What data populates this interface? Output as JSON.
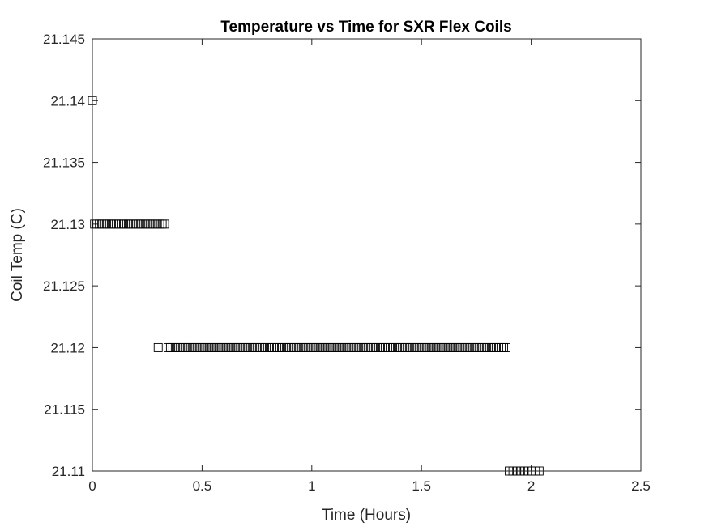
{
  "chart_data": {
    "type": "scatter",
    "title": "Temperature vs Time for SXR Flex Coils",
    "xlabel": "Time (Hours)",
    "ylabel": "Coil Temp (C)",
    "xlim": [
      0,
      2.5
    ],
    "ylim": [
      21.11,
      21.145
    ],
    "xticks": [
      "0",
      "0.5",
      "1",
      "1.5",
      "2",
      "2.5"
    ],
    "yticks": [
      "21.11",
      "21.115",
      "21.12",
      "21.125",
      "21.13",
      "21.135",
      "21.14",
      "21.145"
    ],
    "grid": false,
    "marker": "square",
    "marker_color": "#000000",
    "points_by_level": [
      {
        "y": 21.14,
        "x": [
          0.0
        ]
      },
      {
        "y": 21.13,
        "x": [
          0.01,
          0.021,
          0.032,
          0.043,
          0.054,
          0.065,
          0.076,
          0.087,
          0.098,
          0.109,
          0.12,
          0.131,
          0.142,
          0.153,
          0.164,
          0.175,
          0.186,
          0.197,
          0.208,
          0.219,
          0.23,
          0.241,
          0.252,
          0.263,
          0.274,
          0.285,
          0.296,
          0.307,
          0.318,
          0.329
        ]
      },
      {
        "y": 21.12,
        "x": [
          0.3,
          0.345,
          0.356,
          0.367,
          0.378,
          0.389,
          0.4,
          0.411,
          0.422,
          0.433,
          0.444,
          0.455,
          0.466,
          0.477,
          0.488,
          0.499,
          0.51,
          0.521,
          0.532,
          0.543,
          0.554,
          0.565,
          0.576,
          0.587,
          0.598,
          0.609,
          0.62,
          0.631,
          0.642,
          0.653,
          0.664,
          0.675,
          0.686,
          0.697,
          0.708,
          0.719,
          0.73,
          0.741,
          0.752,
          0.763,
          0.774,
          0.785,
          0.796,
          0.807,
          0.818,
          0.829,
          0.84,
          0.851,
          0.862,
          0.873,
          0.884,
          0.895,
          0.906,
          0.917,
          0.928,
          0.939,
          0.95,
          0.961,
          0.972,
          0.983,
          0.994,
          1.005,
          1.016,
          1.027,
          1.038,
          1.049,
          1.06,
          1.071,
          1.082,
          1.093,
          1.104,
          1.115,
          1.126,
          1.137,
          1.148,
          1.159,
          1.17,
          1.181,
          1.192,
          1.203,
          1.214,
          1.225,
          1.236,
          1.247,
          1.258,
          1.269,
          1.28,
          1.291,
          1.302,
          1.313,
          1.324,
          1.335,
          1.346,
          1.357,
          1.368,
          1.379,
          1.39,
          1.401,
          1.412,
          1.423,
          1.434,
          1.445,
          1.456,
          1.467,
          1.478,
          1.489,
          1.5,
          1.511,
          1.522,
          1.533,
          1.544,
          1.555,
          1.566,
          1.577,
          1.588,
          1.599,
          1.61,
          1.621,
          1.632,
          1.643,
          1.654,
          1.665,
          1.676,
          1.687,
          1.698,
          1.709,
          1.72,
          1.731,
          1.742,
          1.753,
          1.764,
          1.775,
          1.786,
          1.797,
          1.808,
          1.819,
          1.83,
          1.841,
          1.852,
          1.863,
          1.874,
          1.885
        ]
      },
      {
        "y": 21.11,
        "x": [
          1.9,
          1.917,
          1.934,
          1.951,
          1.968,
          1.985,
          2.002,
          2.019,
          2.036
        ]
      }
    ]
  }
}
